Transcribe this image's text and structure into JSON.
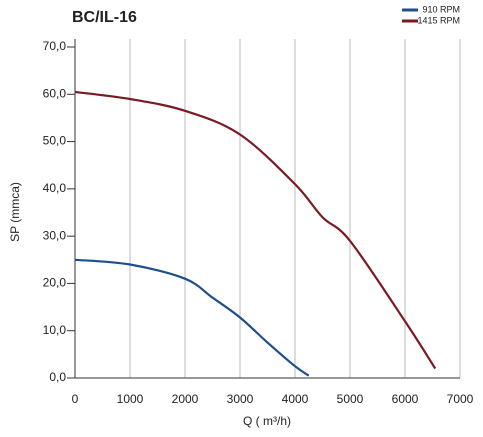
{
  "chart_data": {
    "type": "line",
    "title": "BC/IL-16",
    "x_label": "Q ( m³/h)",
    "y_label": "SP (mmca)",
    "xlim": [
      0,
      7000
    ],
    "xticks": [
      0,
      1000,
      2000,
      3000,
      4000,
      5000,
      6000,
      7000
    ],
    "ylim": [
      0,
      70
    ],
    "yticks": [
      {
        "value": 0,
        "label": "0,0"
      },
      {
        "value": 10,
        "label": "10,0"
      },
      {
        "value": 20,
        "label": "20,0"
      },
      {
        "value": 30,
        "label": "30,0"
      },
      {
        "value": 40,
        "label": "40,0"
      },
      {
        "value": 50,
        "label": "50,0"
      },
      {
        "value": 60,
        "label": "60,0"
      },
      {
        "value": 70,
        "label": "70,0"
      }
    ],
    "grid": "x",
    "legend": "top-right",
    "series": [
      {
        "name": "910 RPM",
        "color": "#1f4e8c",
        "x": [
          0,
          1000,
          2000,
          2500,
          3000,
          3500,
          4000,
          4250
        ],
        "values": [
          25,
          24,
          21,
          17,
          12.8,
          7.5,
          2.5,
          0.5
        ]
      },
      {
        "name": "1415 RPM",
        "color": "#7b1a22",
        "x": [
          0,
          1000,
          2000,
          3000,
          4000,
          4500,
          5000,
          6000,
          6550
        ],
        "values": [
          60.5,
          59,
          56.5,
          51.5,
          41,
          34,
          29,
          12,
          2
        ]
      }
    ]
  }
}
